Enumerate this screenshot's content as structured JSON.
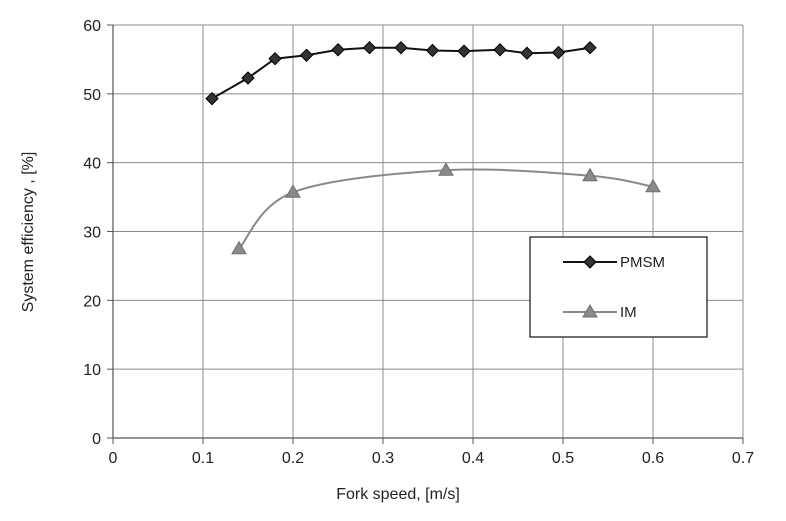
{
  "chart_data": {
    "type": "line",
    "xlabel": "Fork speed, [m/s]",
    "ylabel": "System efficiency , [%]",
    "xlim": [
      0,
      0.7
    ],
    "ylim": [
      0,
      60
    ],
    "x_ticks": [
      "0",
      "0.1",
      "0.2",
      "0.3",
      "0.4",
      "0.5",
      "0.6",
      "0.7"
    ],
    "y_ticks": [
      "0",
      "10",
      "20",
      "30",
      "40",
      "50",
      "60"
    ],
    "grid": true,
    "legend_position": "right",
    "series": [
      {
        "name": "PMSM",
        "color": "#111111",
        "marker": "diamond",
        "smooth": false,
        "points": [
          [
            0.11,
            49.3
          ],
          [
            0.15,
            52.3
          ],
          [
            0.18,
            55.1
          ],
          [
            0.215,
            55.6
          ],
          [
            0.25,
            56.4
          ],
          [
            0.285,
            56.7
          ],
          [
            0.32,
            56.7
          ],
          [
            0.355,
            56.3
          ],
          [
            0.39,
            56.2
          ],
          [
            0.43,
            56.4
          ],
          [
            0.46,
            55.9
          ],
          [
            0.495,
            56.0
          ],
          [
            0.53,
            56.7
          ]
        ]
      },
      {
        "name": "IM",
        "color": "#8a8a8a",
        "marker": "triangle",
        "smooth": true,
        "points": [
          [
            0.14,
            27.5
          ],
          [
            0.2,
            35.7
          ],
          [
            0.37,
            38.9
          ],
          [
            0.53,
            38.1
          ],
          [
            0.6,
            36.5
          ]
        ]
      }
    ]
  }
}
